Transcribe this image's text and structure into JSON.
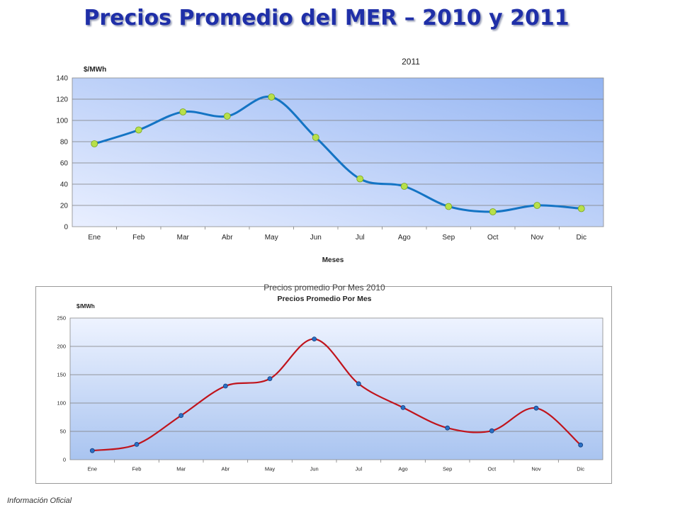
{
  "slide": {
    "title": "Precios Promedio del MER – 2010 y 2011",
    "footer": "Información Oficial"
  },
  "colors": {
    "title": "#1f2fa8",
    "line_2011": "#1474c4",
    "marker_2011": "#b8e04a",
    "line_2010": "#c0141c",
    "marker_2010": "#2a6fc4"
  },
  "chart_data": [
    {
      "type": "line",
      "title": "2011",
      "ylabel": "$/MWh",
      "xlabel": "Meses",
      "categories": [
        "Ene",
        "Feb",
        "Mar",
        "Abr",
        "May",
        "Jun",
        "Jul",
        "Ago",
        "Sep",
        "Oct",
        "Nov",
        "Dic"
      ],
      "series": [
        {
          "values": [
            78,
            91,
            108,
            104,
            122,
            84,
            45,
            38,
            19,
            14,
            20,
            17
          ]
        }
      ],
      "ylim": [
        0,
        140
      ],
      "yticks": [
        0,
        20,
        40,
        60,
        80,
        100,
        120,
        140
      ],
      "grid": true,
      "smooth": true
    },
    {
      "type": "line",
      "title": "Precios promedio Por Mes 2010",
      "subtitle": "Precios Promedio Por Mes",
      "ylabel": "$/MWh",
      "xlabel": "",
      "categories": [
        "Ene",
        "Feb",
        "Mar",
        "Abr",
        "May",
        "Jun",
        "Jul",
        "Ago",
        "Sep",
        "Oct",
        "Nov",
        "Dic"
      ],
      "series": [
        {
          "values": [
            16,
            27,
            78,
            130,
            143,
            213,
            134,
            92,
            56,
            51,
            91,
            26
          ]
        }
      ],
      "ylim": [
        0,
        250
      ],
      "yticks": [
        0,
        50,
        100,
        150,
        200,
        250
      ],
      "grid": true,
      "smooth": true
    }
  ]
}
